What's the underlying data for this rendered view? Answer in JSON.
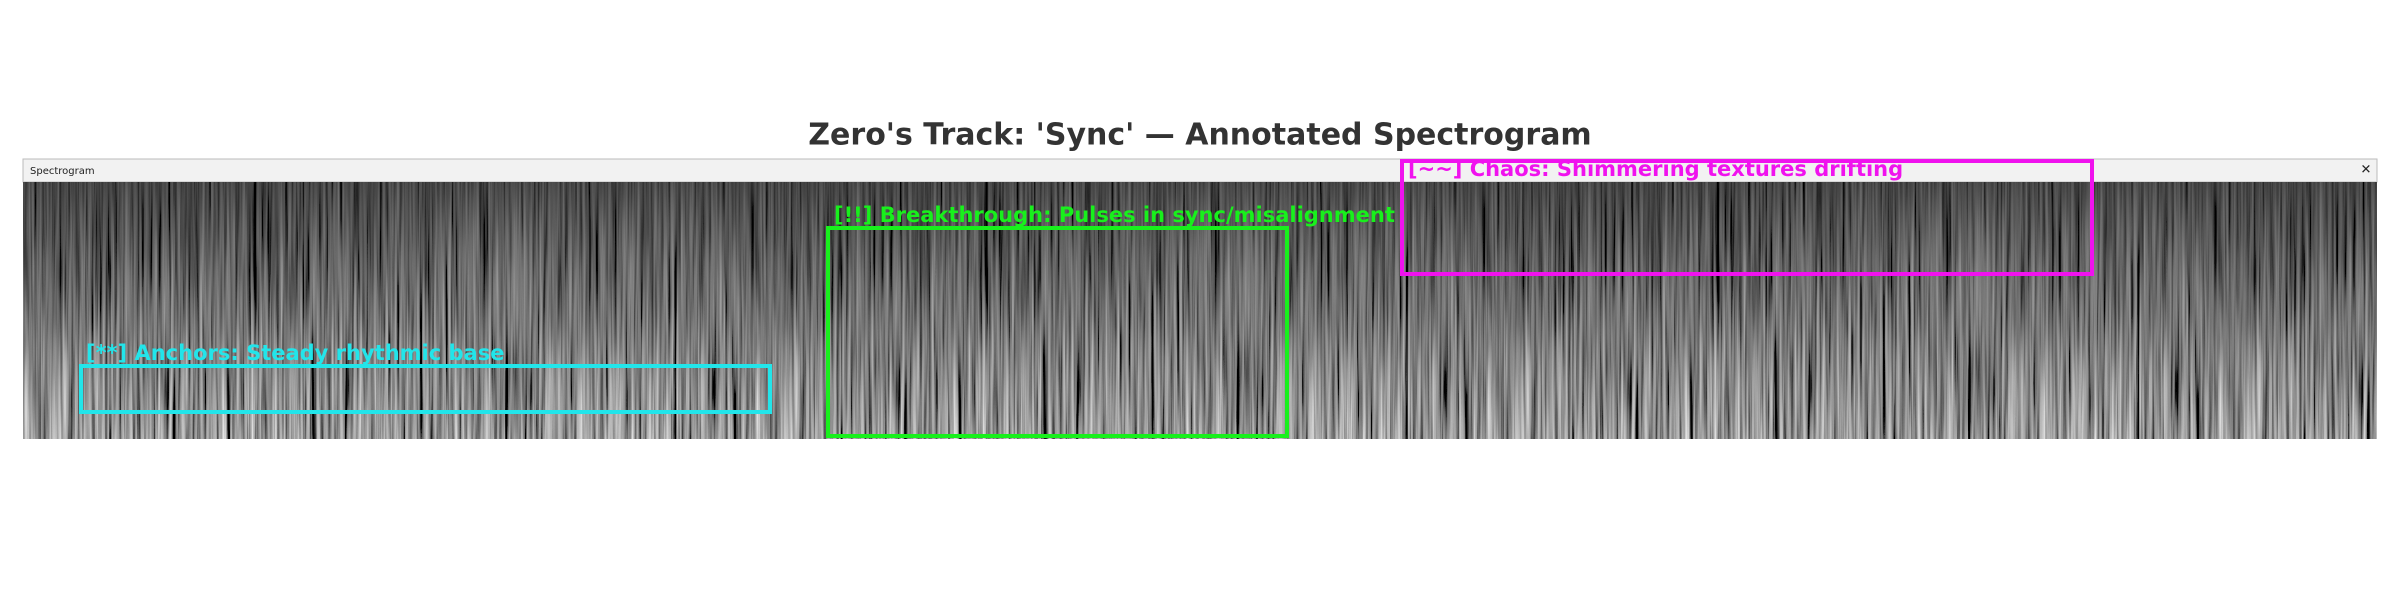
{
  "title": "Zero's Track: 'Sync' — Annotated Spectrogram",
  "window": {
    "title": "Spectrogram",
    "close": "✕"
  },
  "annotations": [
    {
      "label": "[**] Anchors: Steady rhythmic base",
      "color": "#22e5ea"
    },
    {
      "label": "[!!] Breakthrough: Pulses in sync/misalignment",
      "color": "#18f01c"
    },
    {
      "label": "[~~] Chaos: Shimmering textures drifting",
      "color": "#f012ee"
    }
  ]
}
